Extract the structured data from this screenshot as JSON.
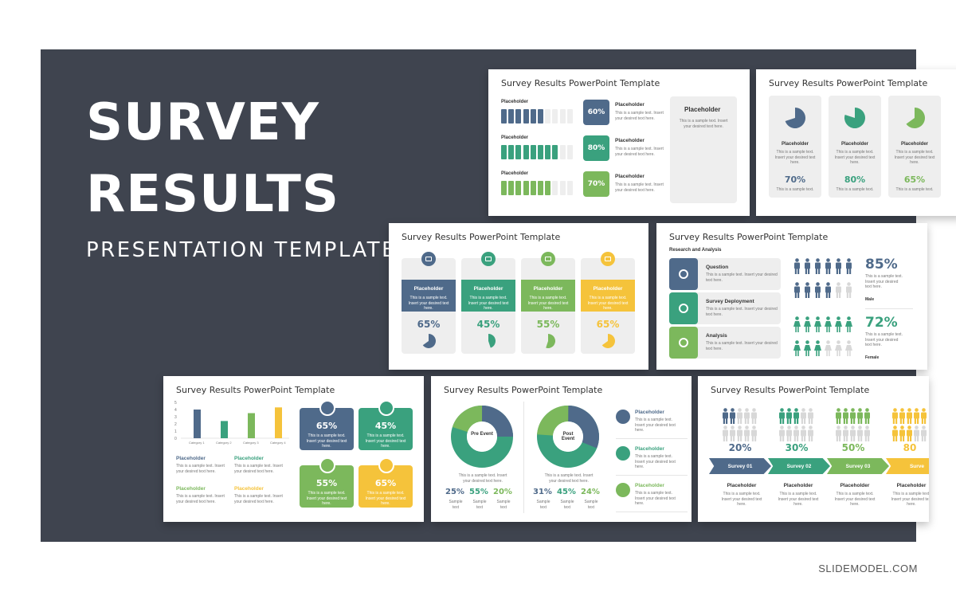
{
  "hero": {
    "line1": "SURVEY",
    "line2": "RESULTS",
    "subtitle": "PRESENTATION TEMPLATE"
  },
  "slide_title": "Survey Results PowerPoint Template",
  "ph": "Placeholder",
  "sample2": "This is a sample text. Insert your desired text here.",
  "sample": "This is a sample text.",
  "s1": {
    "rows": [
      {
        "label": "Placeholder",
        "pct": "60%",
        "color": "#4f6a8a"
      },
      {
        "label": "Placeholder",
        "pct": "80%",
        "color": "#3aa17e"
      },
      {
        "label": "Placeholder",
        "pct": "70%",
        "color": "#7cb85c"
      }
    ],
    "side": "Placeholder"
  },
  "s2": {
    "cols": [
      {
        "label": "Placeholder",
        "pct": "70%",
        "color": "#4f6a8a"
      },
      {
        "label": "Placeholder",
        "pct": "80%",
        "color": "#3aa17e"
      },
      {
        "label": "Placeholder",
        "pct": "65%",
        "color": "#7cb85c"
      }
    ]
  },
  "s3": {
    "cols": [
      {
        "label": "Placeholder",
        "pct": "65%",
        "color": "#4f6a8a"
      },
      {
        "label": "Placeholder",
        "pct": "45%",
        "color": "#3aa17e"
      },
      {
        "label": "Placeholder",
        "pct": "55%",
        "color": "#7cb85c"
      },
      {
        "label": "Placeholder",
        "pct": "65%",
        "color": "#f5c33b"
      }
    ]
  },
  "s4": {
    "heading": "Research and Analysis",
    "items": [
      "Question",
      "Survey Deployment",
      "Analysis"
    ],
    "male_pct": "85%",
    "male": "Male",
    "female_pct": "72%",
    "female": "Female"
  },
  "s5": {
    "axis": [
      "5",
      "4",
      "3",
      "2",
      "1",
      "0"
    ],
    "categories": [
      "Category 1",
      "Category 2",
      "Category 3",
      "Category 4"
    ],
    "values": [
      4,
      2.4,
      3.5,
      4.3
    ],
    "cards": [
      "65%",
      "45%",
      "55%",
      "65%"
    ],
    "labels": [
      "Placeholder",
      "Placeholder",
      "Placeholder",
      "Placeholder"
    ]
  },
  "s6": {
    "pre": "Pre Event",
    "post": "Post Event",
    "pre_vals": [
      "25%",
      "55%",
      "20%"
    ],
    "post_vals": [
      "31%",
      "45%",
      "24%"
    ],
    "caption": "Sample text",
    "side": [
      "Placeholder",
      "Placeholder",
      "Placeholder"
    ]
  },
  "s7": {
    "pcts": [
      "20%",
      "30%",
      "50%",
      "80"
    ],
    "steps": [
      "Survey 01",
      "Survey 02",
      "Survey 03",
      "Surve"
    ]
  },
  "footer": "SLIDEMODEL.COM"
}
